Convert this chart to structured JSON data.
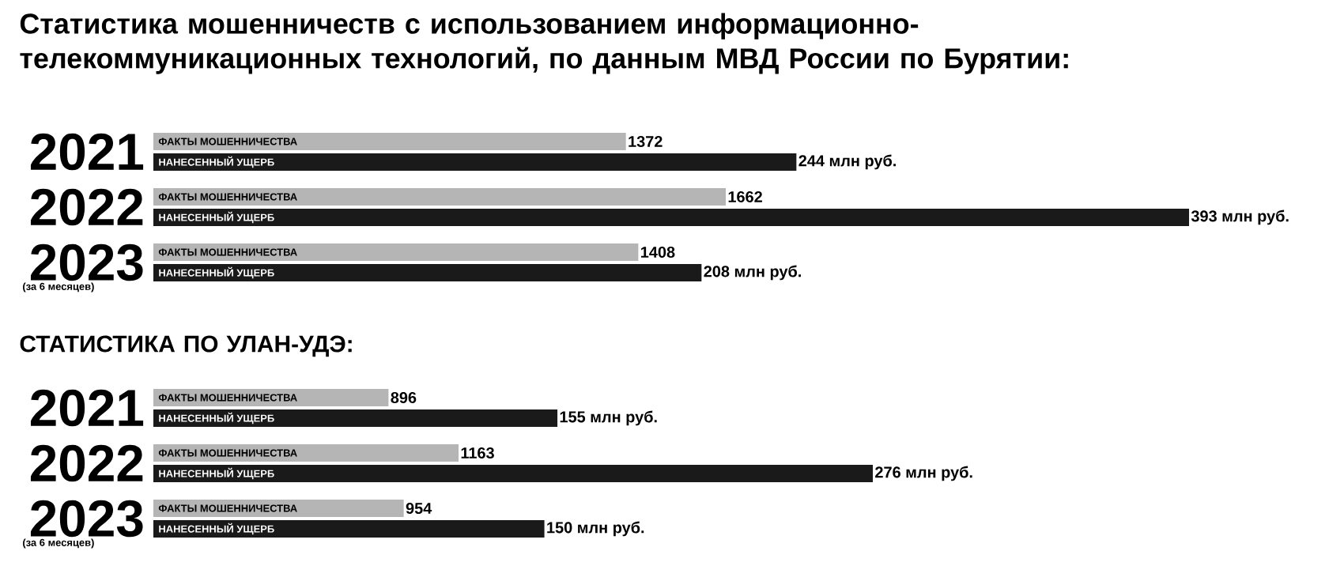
{
  "chart_data": [
    {
      "type": "bar",
      "orientation": "horizontal",
      "title": "Статистика мошенничеств с использованием информационно-телекоммуникационных технологий, по данным МВД России по Бурятии:",
      "categories": [
        "2021",
        "2022",
        "2023"
      ],
      "tick_labels": "y",
      "annotations": [
        "(за 6 месяцев)"
      ],
      "series": [
        {
          "name": "ФАКТЫ МОШЕННИЧЕСТВА",
          "color": "#b5b5b5",
          "values": [
            1372,
            1662,
            1408
          ],
          "value_labels": [
            "1372",
            "1662",
            "1408"
          ]
        }
      ]
    },
    {
      "type": "bar",
      "orientation": "horizontal",
      "categories": [
        null,
        null,
        null
      ],
      "tick_labels": false,
      "series": [
        {
          "name": "НАНЕСЕННЫЙ УЩЕРБ",
          "color": "#1a1a1a",
          "values": [
            244,
            393,
            208
          ],
          "value_labels": [
            "244 млн руб.",
            "393 млн руб.",
            "208 млн руб."
          ]
        }
      ]
    },
    {
      "type": "bar",
      "orientation": "horizontal",
      "title": "СТАТИСТИКА ПО УЛАН-УДЭ:",
      "categories": [
        "2021",
        "2022",
        "2023"
      ],
      "tick_labels": "y",
      "annotations": [
        "(за 6 месяцев)"
      ],
      "series": [
        {
          "name": "ФАКТЫ МОШЕННИЧЕСТВА",
          "color": "#b5b5b5",
          "values": [
            896,
            1163,
            954
          ],
          "value_labels": [
            "896",
            "1163",
            "954"
          ]
        }
      ]
    },
    {
      "type": "bar",
      "orientation": "horizontal",
      "categories": [
        null,
        null,
        null
      ],
      "tick_labels": false,
      "series": [
        {
          "name": "НАНЕСЕННЫЙ УЩЕРБ",
          "color": "#1a1a1a",
          "values": [
            155,
            276,
            150
          ],
          "value_labels": [
            "155 млн руб.",
            "276 млн руб.",
            "150 млн руб."
          ]
        }
      ]
    }
  ]
}
